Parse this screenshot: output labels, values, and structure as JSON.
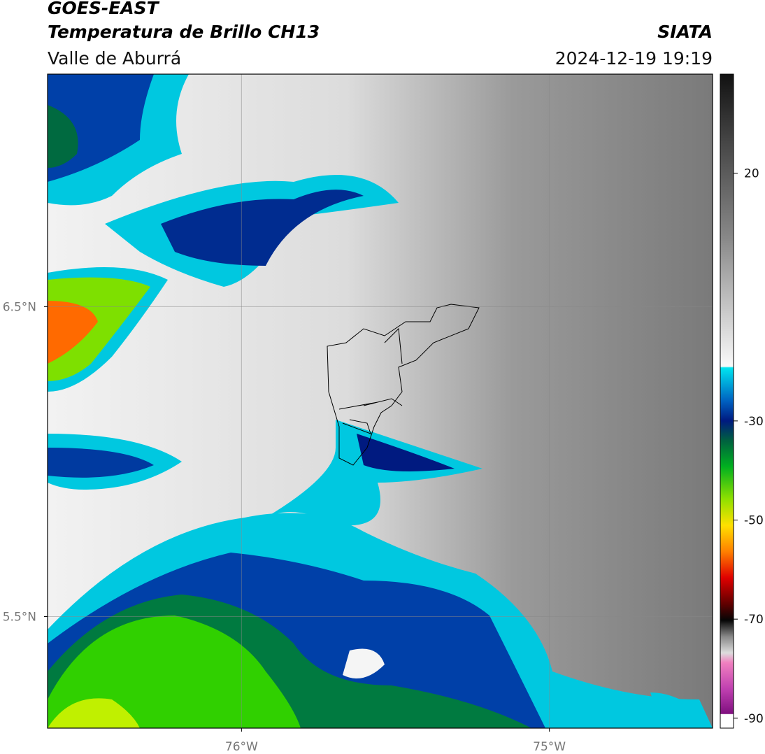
{
  "header": {
    "title": "GOES-EAST",
    "subtitle": "Temperatura de Brillo CH13",
    "region": "Valle de Aburrá",
    "source": "SIATA",
    "timestamp": "2024-12-19 19:19"
  },
  "map": {
    "xlim": [
      -76.63,
      -74.47
    ],
    "ylim": [
      5.14,
      7.25
    ],
    "xticks": [
      {
        "value": -76,
        "label": "76°W"
      },
      {
        "value": -75,
        "label": "75°W"
      }
    ],
    "yticks": [
      {
        "value": 6.5,
        "label": "6.5°N"
      },
      {
        "value": 5.5,
        "label": "5.5°N"
      }
    ]
  },
  "colorbar": {
    "ylim": [
      -92,
      40
    ],
    "yticks": [
      20,
      -30,
      -50,
      -70,
      -90
    ]
  }
}
